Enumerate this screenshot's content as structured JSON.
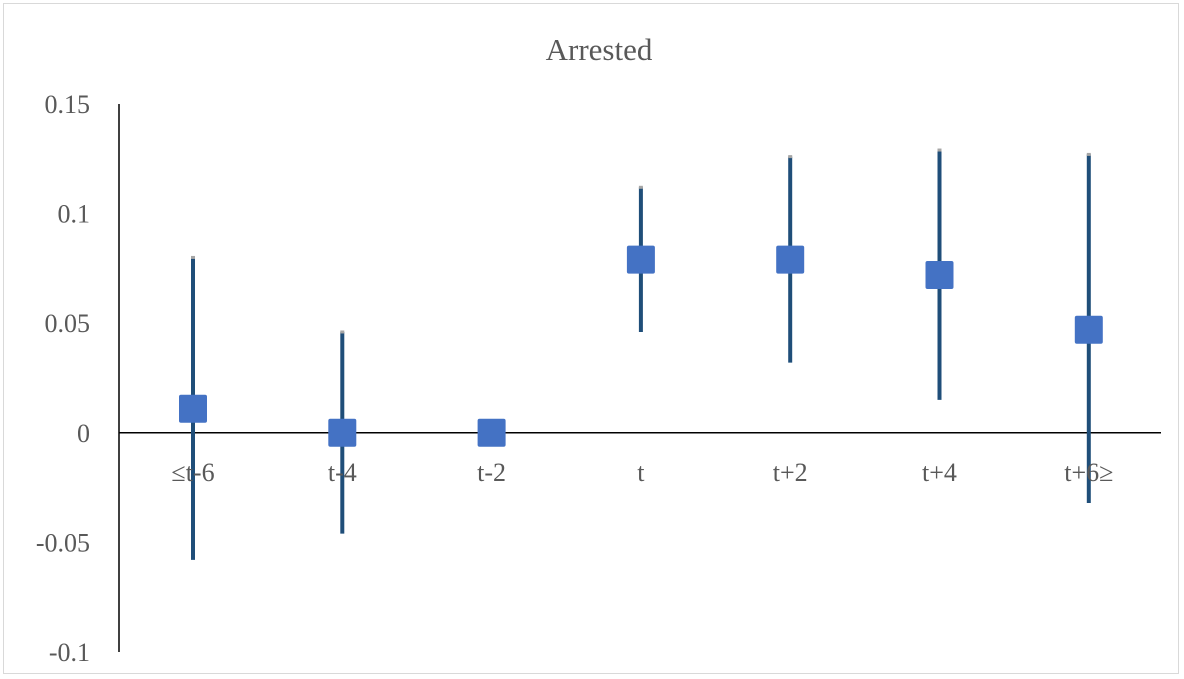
{
  "chart_data": {
    "type": "scatter",
    "title": "Arrested",
    "xlabel": "",
    "ylabel": "",
    "categories": [
      "≤t-6",
      "t-4",
      "t-2",
      "t",
      "t+2",
      "t+4",
      "t+6≥"
    ],
    "series": [
      {
        "values": [
          0.011,
          0.0,
          0.0,
          0.079,
          0.079,
          0.072,
          0.047
        ],
        "lower": [
          -0.058,
          -0.046,
          0.0,
          0.046,
          0.032,
          0.015,
          -0.032
        ],
        "upper": [
          0.08,
          0.046,
          0.0,
          0.112,
          0.126,
          0.129,
          0.127
        ]
      }
    ],
    "ylim": [
      -0.1,
      0.15
    ],
    "yticks": [
      0.15,
      0.1,
      0.05,
      0,
      -0.05,
      -0.1
    ],
    "ytick_labels": [
      "0.15",
      "0.1",
      "0.05",
      "0",
      "-0.05",
      "-0.1"
    ],
    "grid": false,
    "colors": {
      "marker": "#4472c4",
      "errorbar": "#1f4e79",
      "cap": "#a6a6a6",
      "axis": "#000000",
      "text": "#595959"
    }
  }
}
